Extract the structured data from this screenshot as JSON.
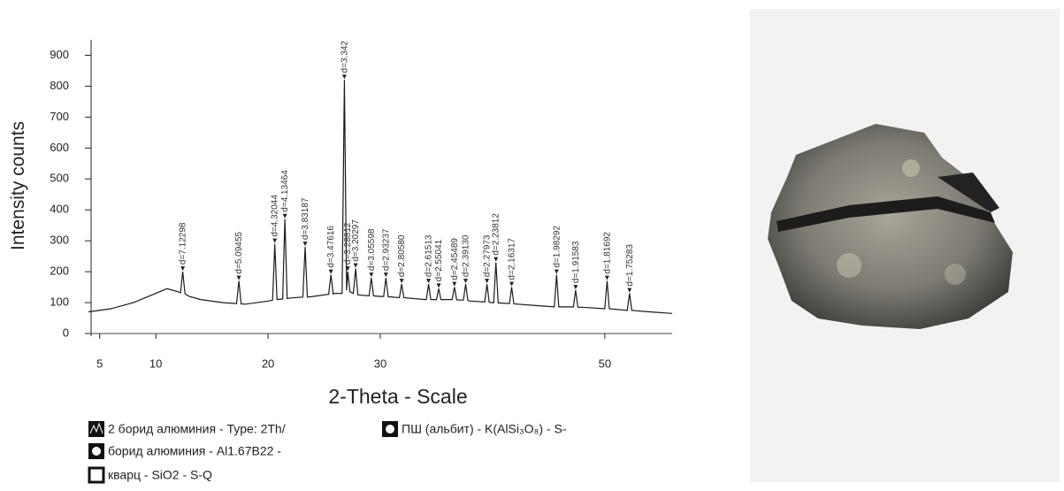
{
  "chart_data": {
    "type": "line",
    "y_label": "Intensity counts",
    "x_label": "2-Theta - Scale",
    "color": "#1a1a1a",
    "xlim": [
      4,
      56
    ],
    "ylim": [
      0,
      950
    ],
    "xticks": [
      5,
      10,
      20,
      30,
      50
    ],
    "yticks": [
      0,
      100,
      200,
      300,
      400,
      500,
      600,
      700,
      800,
      900
    ],
    "x": [
      4,
      6,
      8,
      10,
      11,
      12,
      12.2,
      12.4,
      12.6,
      13,
      14,
      16,
      17.2,
      17.4,
      17.6,
      18,
      20,
      20.4,
      20.6,
      20.8,
      21.3,
      21.5,
      21.7,
      22,
      23.1,
      23.3,
      23.5,
      24,
      25.4,
      25.6,
      25.8,
      26,
      26.6,
      26.8,
      27,
      27.1,
      27.3,
      27.6,
      27.8,
      28,
      29,
      29.2,
      29.4,
      30,
      30.3,
      30.5,
      30.7,
      31.7,
      31.9,
      32.1,
      34,
      34.1,
      34.3,
      34.5,
      35,
      35.2,
      35.4,
      36,
      36.4,
      36.6,
      36.8,
      37.4,
      37.6,
      37.8,
      38,
      39.3,
      39.5,
      39.7,
      40,
      40.1,
      40.3,
      40.5,
      41.5,
      41.7,
      41.9,
      44,
      45.5,
      45.7,
      45.9,
      47.2,
      47.4,
      47.6,
      48,
      50,
      50.2,
      50.4,
      52,
      52.2,
      52.4,
      54,
      56
    ],
    "values": [
      70,
      80,
      100,
      130,
      145,
      135,
      132,
      200,
      128,
      120,
      110,
      100,
      97,
      170,
      96,
      95,
      105,
      108,
      290,
      110,
      112,
      370,
      113,
      115,
      118,
      280,
      118,
      120,
      127,
      190,
      128,
      130,
      130,
      820,
      140,
      200,
      135,
      130,
      210,
      125,
      122,
      180,
      122,
      120,
      120,
      180,
      119,
      116,
      160,
      116,
      110,
      110,
      160,
      110,
      110,
      145,
      110,
      110,
      110,
      150,
      109,
      108,
      160,
      107,
      105,
      102,
      160,
      101,
      100,
      100,
      230,
      99,
      97,
      150,
      96,
      90,
      86,
      190,
      86,
      86,
      140,
      85,
      85,
      80,
      170,
      80,
      75,
      130,
      75,
      70,
      65
    ],
    "annotations": [
      {
        "text": "d=7.12298",
        "x": 12.4,
        "y": 200
      },
      {
        "text": "d=5.09455",
        "x": 17.4,
        "y": 170
      },
      {
        "text": "d=4.32044",
        "x": 20.6,
        "y": 290
      },
      {
        "text": "d=4.13464",
        "x": 21.5,
        "y": 370
      },
      {
        "text": "d=3.83187",
        "x": 23.3,
        "y": 280
      },
      {
        "text": "d=3.47616",
        "x": 25.6,
        "y": 190
      },
      {
        "text": "d=3.342",
        "x": 26.8,
        "y": 820
      },
      {
        "text": "d=3.28812",
        "x": 27.1,
        "y": 200
      },
      {
        "text": "d=3.20297",
        "x": 27.8,
        "y": 210
      },
      {
        "text": "d=3.05598",
        "x": 29.2,
        "y": 180
      },
      {
        "text": "d=2.93237",
        "x": 30.5,
        "y": 180
      },
      {
        "text": "d=2.80580",
        "x": 31.9,
        "y": 160
      },
      {
        "text": "d=2.61513",
        "x": 34.3,
        "y": 160
      },
      {
        "text": "d=2.55041",
        "x": 35.2,
        "y": 145
      },
      {
        "text": "d=2.45489",
        "x": 36.6,
        "y": 150
      },
      {
        "text": "d=2.39130",
        "x": 37.6,
        "y": 160
      },
      {
        "text": "d=2.27973",
        "x": 39.5,
        "y": 160
      },
      {
        "text": "d=2.23812",
        "x": 40.3,
        "y": 230
      },
      {
        "text": "d=2.16317",
        "x": 41.7,
        "y": 150
      },
      {
        "text": "d=1.98292",
        "x": 45.7,
        "y": 190
      },
      {
        "text": "d=1.91583",
        "x": 47.4,
        "y": 140
      },
      {
        "text": "d=1.81692",
        "x": 50.2,
        "y": 170
      },
      {
        "text": "d=1.75283",
        "x": 52.2,
        "y": 130
      }
    ],
    "legend": [
      "2 борид алюминия - Type: 2Th/",
      "ПШ (альбит) - K(AlSi₃O₈) - S-",
      "борид алюминия - Al1.67B22 -",
      "кварц - SiO2 - S-Q"
    ]
  }
}
